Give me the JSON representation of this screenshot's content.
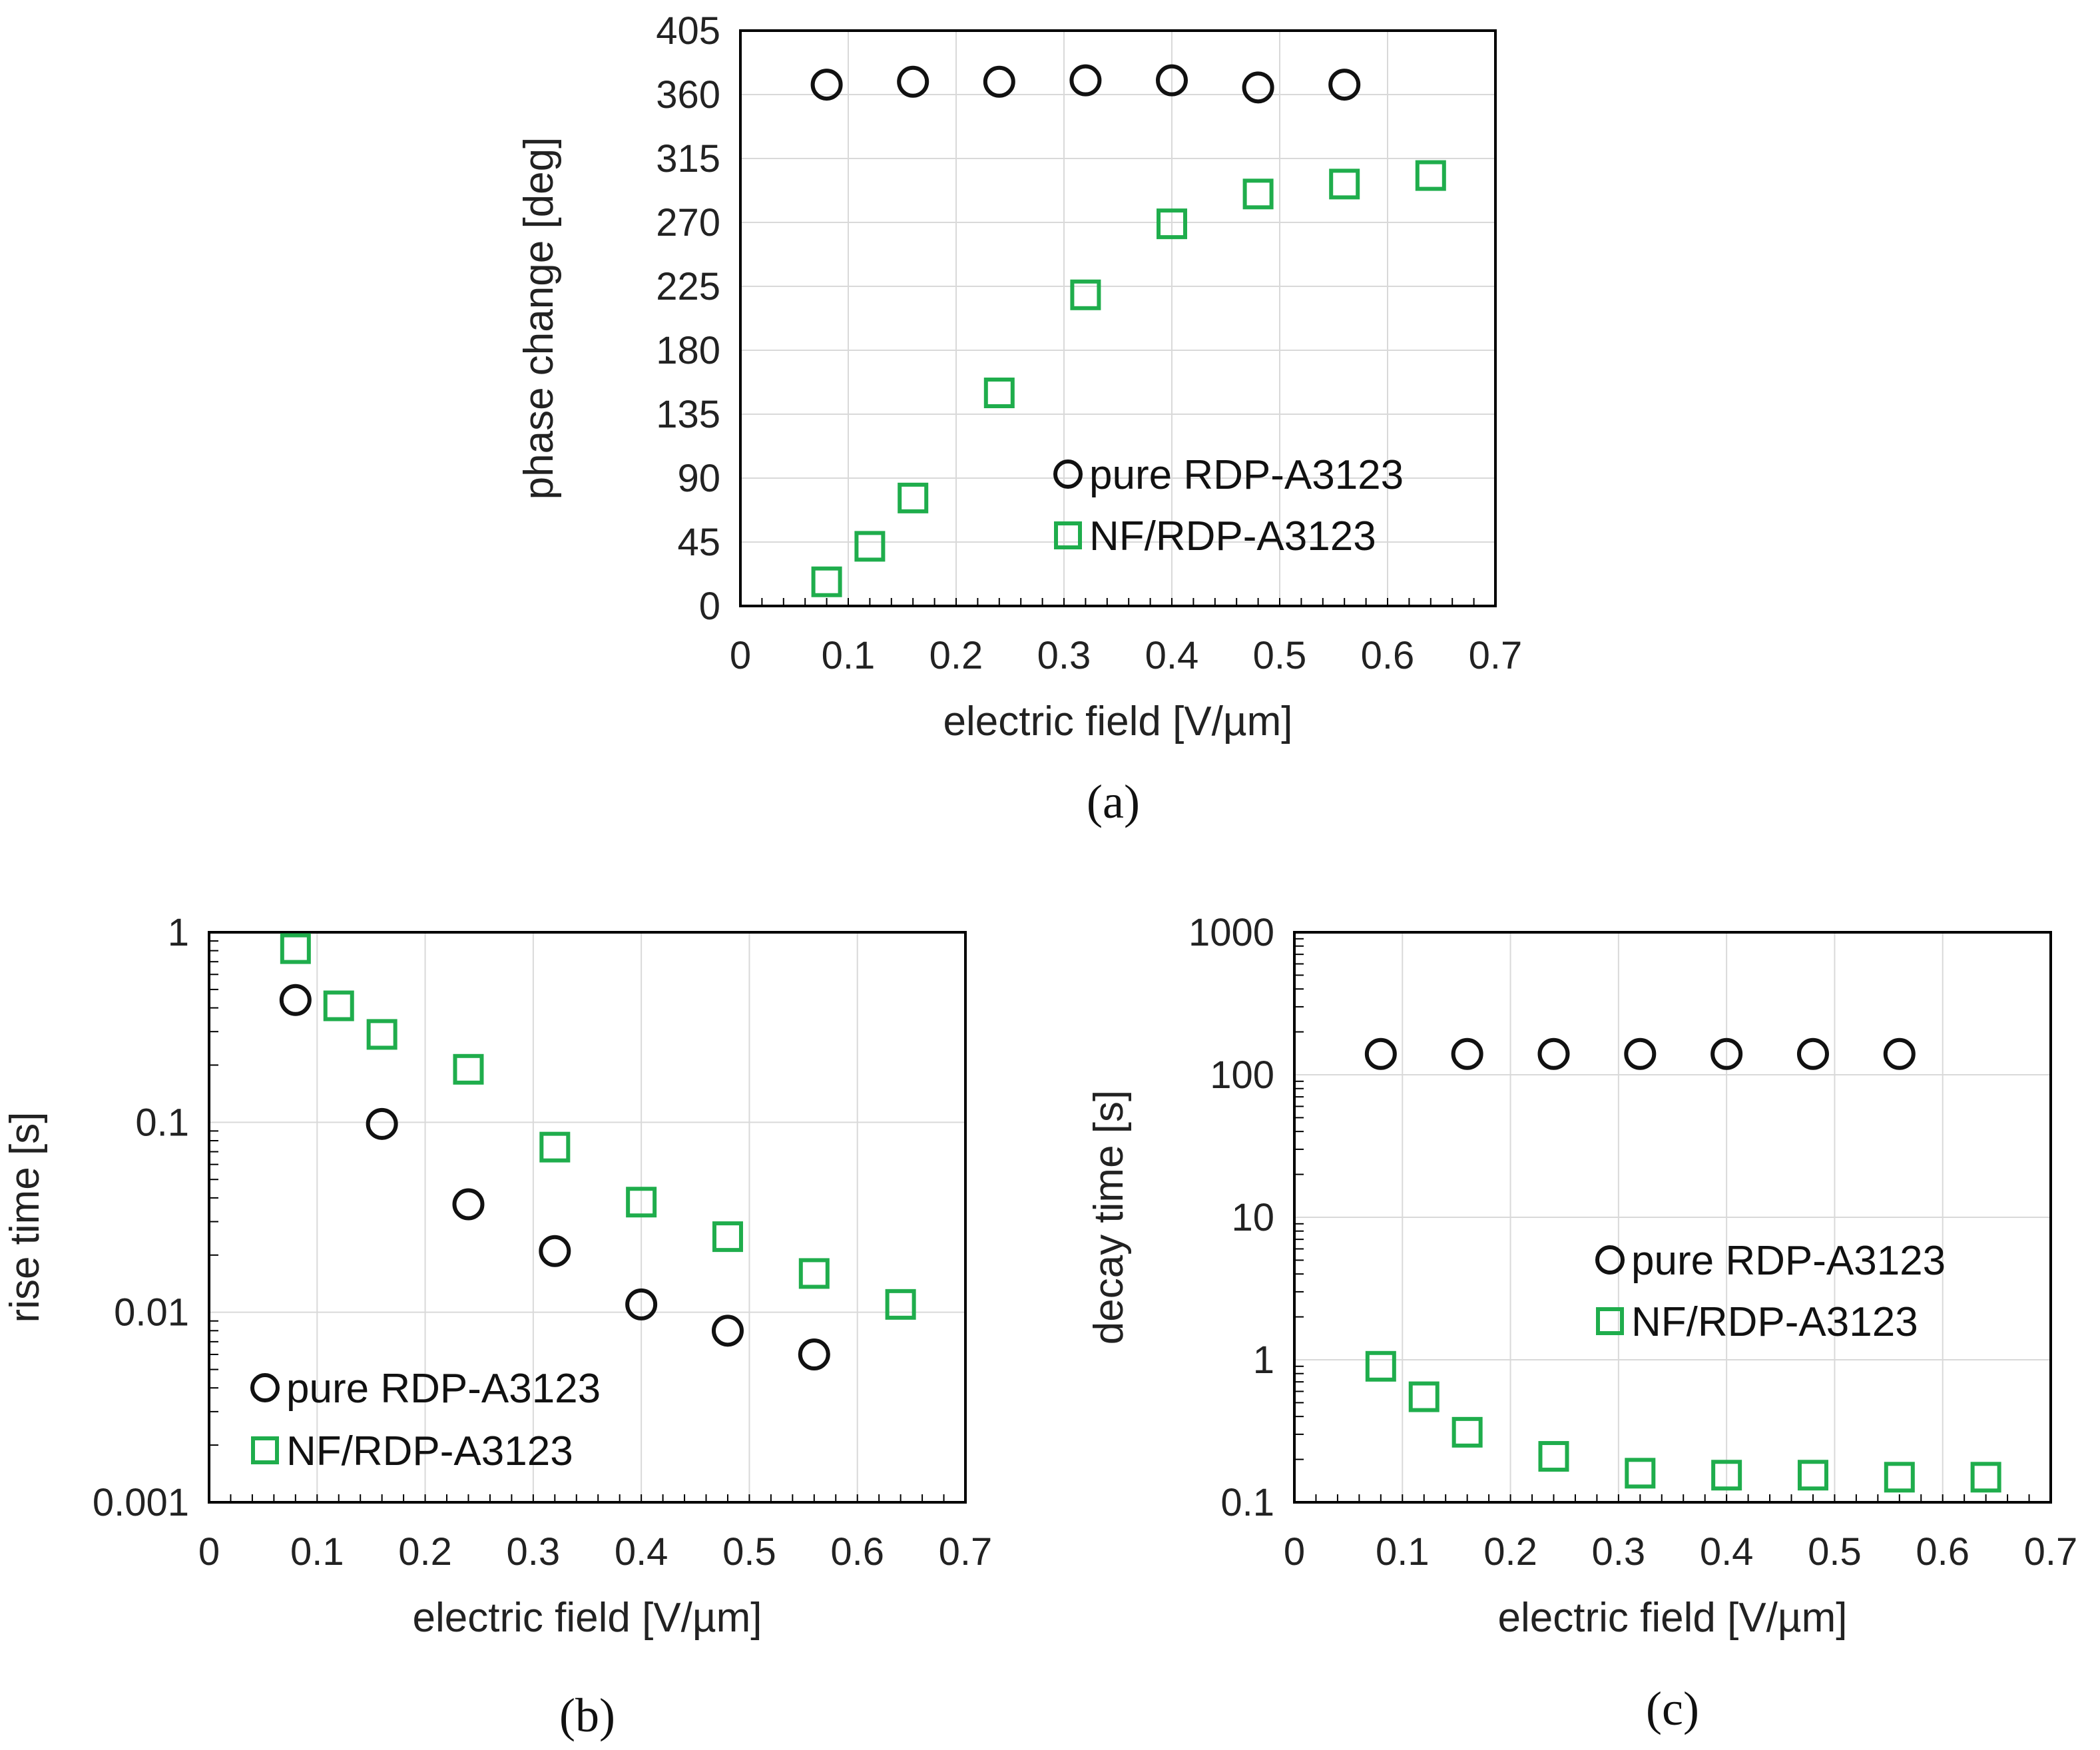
{
  "colors": {
    "circle": "#111111",
    "square": "#1fad4c"
  },
  "chart_data": [
    {
      "id": "a",
      "type": "scatter",
      "caption": "(a)",
      "xlabel": "electric field [V/µm]",
      "ylabel": "phase change [deg]",
      "xlim": [
        0,
        0.7
      ],
      "ylim": [
        0,
        405
      ],
      "yscale": "linear",
      "xticks": [
        "0",
        "0.1",
        "0.2",
        "0.3",
        "0.4",
        "0.5",
        "0.6",
        "0.7"
      ],
      "yticks": [
        "0",
        "45",
        "90",
        "135",
        "180",
        "225",
        "270",
        "315",
        "360",
        "405"
      ],
      "legend_position": "bottom-right",
      "series": [
        {
          "name": "pure RDP-A3123",
          "marker": "circle",
          "x": [
            0.08,
            0.16,
            0.24,
            0.32,
            0.4,
            0.48,
            0.56
          ],
          "y": [
            367,
            369,
            369,
            370,
            370,
            365,
            367
          ]
        },
        {
          "name": "NF/RDP-A3123",
          "marker": "square",
          "x": [
            0.08,
            0.12,
            0.16,
            0.24,
            0.32,
            0.4,
            0.48,
            0.56,
            0.64
          ],
          "y": [
            17,
            42,
            76,
            150,
            219,
            269,
            290,
            297,
            303
          ]
        }
      ]
    },
    {
      "id": "b",
      "type": "scatter",
      "caption": "(b)",
      "xlabel": "electric field [V/µm]",
      "ylabel": "rise time [s]",
      "xlim": [
        0,
        0.7
      ],
      "ylim": [
        0.001,
        1
      ],
      "yscale": "log",
      "xticks": [
        "0",
        "0.1",
        "0.2",
        "0.3",
        "0.4",
        "0.5",
        "0.6",
        "0.7"
      ],
      "yticks": [
        "0.001",
        "0.01",
        "0.1",
        "1"
      ],
      "legend_position": "bottom-left",
      "series": [
        {
          "name": "pure RDP-A3123",
          "marker": "circle",
          "x": [
            0.08,
            0.16,
            0.24,
            0.32,
            0.4,
            0.48,
            0.56
          ],
          "y": [
            0.44,
            0.098,
            0.037,
            0.021,
            0.011,
            0.008,
            0.006
          ]
        },
        {
          "name": "NF/RDP-A3123",
          "marker": "square",
          "x": [
            0.08,
            0.12,
            0.16,
            0.24,
            0.32,
            0.4,
            0.48,
            0.56,
            0.64
          ],
          "y": [
            0.82,
            0.41,
            0.29,
            0.19,
            0.074,
            0.038,
            0.025,
            0.016,
            0.011
          ]
        }
      ]
    },
    {
      "id": "c",
      "type": "scatter",
      "caption": "(c)",
      "xlabel": "electric field [V/µm]",
      "ylabel": "decay time [s]",
      "xlim": [
        0,
        0.7
      ],
      "ylim": [
        0.1,
        1000
      ],
      "yscale": "log",
      "xticks": [
        "0",
        "0.1",
        "0.2",
        "0.3",
        "0.4",
        "0.5",
        "0.6",
        "0.7"
      ],
      "yticks": [
        "0.1",
        "1",
        "10",
        "100",
        "1000"
      ],
      "legend_position": "middle-right",
      "series": [
        {
          "name": "pure RDP-A3123",
          "marker": "circle",
          "x": [
            0.08,
            0.16,
            0.24,
            0.32,
            0.4,
            0.48,
            0.56
          ],
          "y": [
            140,
            140,
            140,
            140,
            140,
            140,
            140
          ]
        },
        {
          "name": "NF/RDP-A3123",
          "marker": "square",
          "x": [
            0.08,
            0.12,
            0.16,
            0.24,
            0.32,
            0.4,
            0.48,
            0.56,
            0.64
          ],
          "y": [
            0.9,
            0.55,
            0.31,
            0.21,
            0.16,
            0.155,
            0.155,
            0.15,
            0.15
          ]
        }
      ]
    }
  ]
}
